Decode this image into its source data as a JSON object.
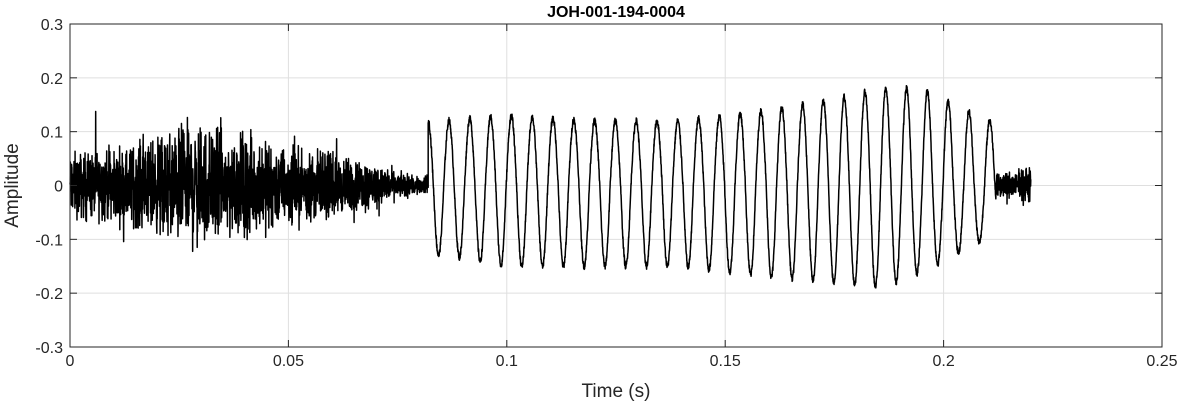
{
  "chart_data": {
    "type": "line",
    "title": "JOH-001-194-0004",
    "xlabel": "Time (s)",
    "ylabel": "Amplitude",
    "xlim": [
      0,
      0.25
    ],
    "ylim": [
      -0.3,
      0.3
    ],
    "xticks": [
      0,
      0.05,
      0.1,
      0.15,
      0.2,
      0.25
    ],
    "xtick_labels": [
      "0",
      "0.05",
      "0.1",
      "0.15",
      "0.2",
      "0.25"
    ],
    "yticks": [
      -0.3,
      -0.2,
      -0.1,
      0,
      0.1,
      0.2,
      0.3
    ],
    "ytick_labels": [
      "-0.3",
      "-0.2",
      "-0.1",
      "0",
      "0.1",
      "0.2",
      "0.3"
    ],
    "grid": true,
    "line_color": "#000000",
    "grid_color": "#dfdfdf",
    "series": [
      {
        "description_segments": [
          {
            "t_start": 0.0,
            "t_end": 0.082,
            "kind": "noise",
            "envelope": [
              [
                0.0,
                0.13
              ],
              [
                0.01,
                0.14
              ],
              [
                0.02,
                0.19
              ],
              [
                0.028,
                0.25
              ],
              [
                0.04,
                0.2
              ],
              [
                0.05,
                0.15
              ],
              [
                0.06,
                0.12
              ],
              [
                0.07,
                0.09
              ],
              [
                0.075,
                0.05
              ],
              [
                0.082,
                0.04
              ]
            ]
          },
          {
            "t_start": 0.082,
            "t_end": 0.212,
            "kind": "oscillation",
            "frequency_hz": 210,
            "peaks": [
              [
                0.086,
                0.12
              ],
              [
                0.1,
                0.13
              ],
              [
                0.12,
                0.12
              ],
              [
                0.14,
                0.12
              ],
              [
                0.16,
                0.14
              ],
              [
                0.175,
                0.16
              ],
              [
                0.185,
                0.18
              ],
              [
                0.195,
                0.18
              ],
              [
                0.205,
                0.14
              ],
              [
                0.211,
                0.12
              ]
            ],
            "troughs": [
              [
                0.087,
                -0.13
              ],
              [
                0.1,
                -0.15
              ],
              [
                0.12,
                -0.15
              ],
              [
                0.14,
                -0.15
              ],
              [
                0.16,
                -0.17
              ],
              [
                0.175,
                -0.18
              ],
              [
                0.186,
                -0.19
              ],
              [
                0.195,
                -0.16
              ],
              [
                0.2,
                -0.14
              ],
              [
                0.212,
                -0.09
              ]
            ]
          },
          {
            "t_start": 0.212,
            "t_end": 0.22,
            "kind": "noise",
            "envelope": [
              [
                0.212,
                0.05
              ],
              [
                0.22,
                0.07
              ]
            ]
          }
        ]
      }
    ]
  }
}
